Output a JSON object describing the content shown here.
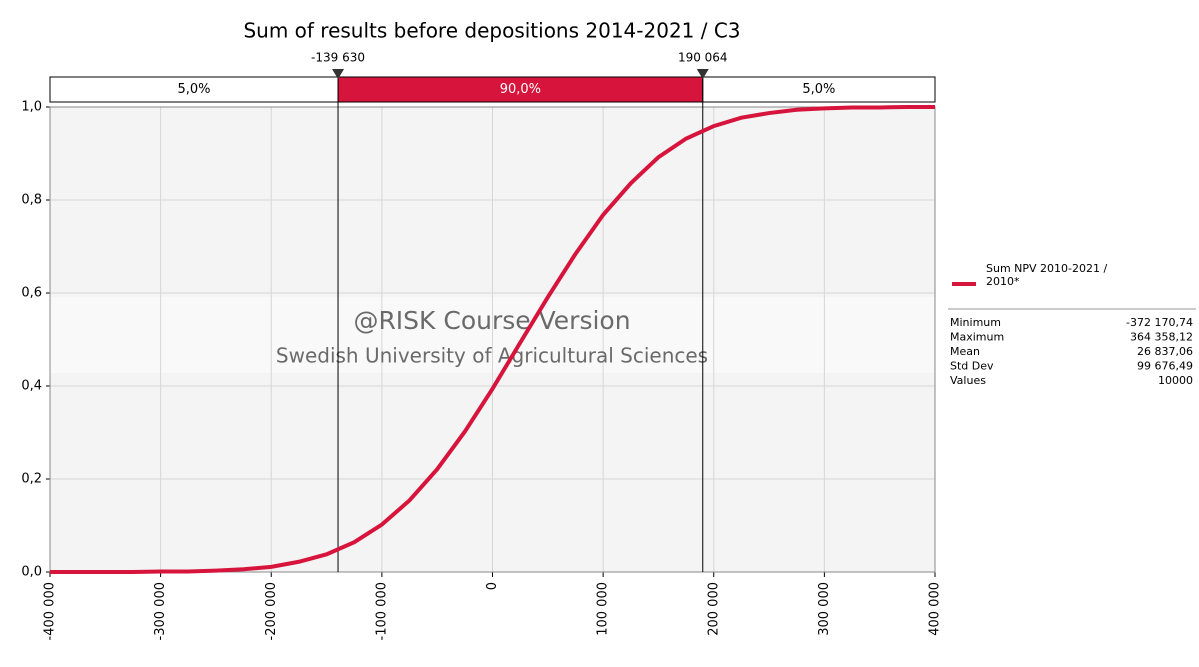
{
  "chart_data": {
    "type": "line",
    "title": "Sum of results before depositions 2014-2021 / C3",
    "x": [
      -400000,
      -375000,
      -350000,
      -325000,
      -300000,
      -275000,
      -250000,
      -225000,
      -200000,
      -175000,
      -150000,
      -125000,
      -100000,
      -75000,
      -50000,
      -25000,
      0,
      25000,
      50000,
      75000,
      100000,
      125000,
      150000,
      175000,
      200000,
      225000,
      250000,
      275000,
      300000,
      325000,
      350000,
      375000,
      400000
    ],
    "series": [
      {
        "name": "Sum NPV 2010-2021 / 2010*",
        "color": "#d7143b",
        "values": [
          0,
          0,
          0,
          0,
          0.001,
          0.001,
          0.003,
          0.006,
          0.011,
          0.022,
          0.038,
          0.064,
          0.102,
          0.154,
          0.221,
          0.302,
          0.394,
          0.493,
          0.591,
          0.684,
          0.768,
          0.836,
          0.892,
          0.932,
          0.959,
          0.977,
          0.987,
          0.994,
          0.997,
          0.999,
          0.999,
          1,
          1
        ]
      }
    ],
    "xlim": [
      -400000,
      400000
    ],
    "xticks": [
      {
        "value": -400000,
        "label": "-400 000"
      },
      {
        "value": -300000,
        "label": "-300 000"
      },
      {
        "value": -200000,
        "label": "-200 000"
      },
      {
        "value": -100000,
        "label": "-100 000"
      },
      0,
      {
        "value": 100000,
        "label": "100 000"
      },
      {
        "value": 200000,
        "label": "200 000"
      },
      {
        "value": 300000,
        "label": "300 000"
      },
      {
        "value": 400000,
        "label": "400 000"
      }
    ],
    "ylim": [
      0,
      1
    ],
    "yticks": [
      {
        "value": 0,
        "label": "0,0"
      },
      {
        "value": 0.2,
        "label": "0,2"
      },
      {
        "value": 0.4,
        "label": "0,4"
      },
      {
        "value": 0.6,
        "label": "0,6"
      },
      {
        "value": 0.8,
        "label": "0,8"
      },
      {
        "value": 1,
        "label": "1,0"
      }
    ],
    "grid": true,
    "delimiters": [
      {
        "value": -139630,
        "label": "-139 630"
      },
      {
        "value": 190064,
        "label": "190 064"
      }
    ],
    "band_values": [
      5,
      90,
      5
    ],
    "band_labels": [
      "5,0%",
      "90,0%",
      "5,0%"
    ],
    "watermark": [
      "@RISK Course Version",
      "Swedish University of Agricultural Sciences"
    ],
    "stats": [
      {
        "name": "Minimum",
        "value": -372170.74,
        "label": "-372 170,74"
      },
      {
        "name": "Maximum",
        "value": 364358.12,
        "label": "364 358,12"
      },
      {
        "name": "Mean",
        "value": 26837.06,
        "label": "26 837,06"
      },
      {
        "name": "Std Dev",
        "value": 99676.49,
        "label": "99 676,49"
      },
      {
        "name": "Values",
        "value": 10000
      }
    ]
  }
}
